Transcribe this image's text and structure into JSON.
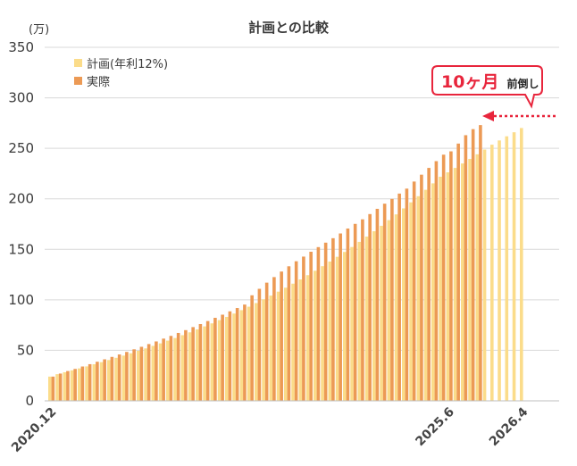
{
  "chart_data": {
    "type": "bar",
    "title": "計画との比較",
    "unit_label": "(万)",
    "ylim": [
      0,
      350
    ],
    "yticks": [
      0,
      50,
      100,
      150,
      200,
      250,
      300,
      350
    ],
    "grid": true,
    "legend_position": "top-left",
    "x_start": "2020.12",
    "x_end": "2026.4",
    "x_labels": [
      {
        "text": "2020.12",
        "index": 0,
        "color": "#444444"
      },
      {
        "text": "2025.6",
        "index": 54,
        "color": "#e8253c"
      },
      {
        "text": "2026.4",
        "index": 64,
        "color": "#444444"
      }
    ],
    "series": [
      {
        "name": "計画(年利12%)",
        "color": "#fbdc8a",
        "values": [
          24.0,
          26.4,
          28.3,
          30.2,
          32.1,
          34.1,
          36.2,
          38.3,
          40.4,
          42.6,
          44.8,
          47.1,
          49.5,
          51.9,
          54.4,
          56.9,
          59.6,
          62.2,
          65.0,
          67.8,
          70.7,
          73.7,
          76.7,
          79.9,
          83.1,
          86.4,
          89.8,
          93.2,
          96.8,
          100.5,
          104.2,
          108.1,
          112.0,
          116.0,
          120.2,
          124.4,
          128.8,
          133.3,
          137.9,
          142.6,
          147.4,
          152.3,
          157.4,
          162.6,
          167.9,
          173.3,
          178.9,
          184.6,
          190.5,
          196.5,
          202.6,
          208.9,
          215.3,
          221.9,
          226.2,
          230.6,
          235.0,
          239.5,
          244.1,
          248.8,
          253.6,
          257.8,
          261.9,
          265.9,
          270.1
        ]
      },
      {
        "name": "実際",
        "color": "#ec9a55",
        "values": [
          24.0,
          27.0,
          29.5,
          31.6,
          34.0,
          36.3,
          38.7,
          41.1,
          43.5,
          45.9,
          48.4,
          51.0,
          53.5,
          56.2,
          58.8,
          61.6,
          64.3,
          67.2,
          70.0,
          73.0,
          76.0,
          79.0,
          82.2,
          85.3,
          88.6,
          91.9,
          95.3,
          104.5,
          110.9,
          117.0,
          122.5,
          128.0,
          133.2,
          138.2,
          142.8,
          147.6,
          152.2,
          156.6,
          161.0,
          165.7,
          170.6,
          175.2,
          179.7,
          184.9,
          190.1,
          195.2,
          199.9,
          205.2,
          210.1,
          217.1,
          223.9,
          230.6,
          237.3,
          243.7,
          247.0,
          254.7,
          263.0,
          269.0,
          273.0
        ]
      }
    ],
    "annotation": {
      "big_text": "10ヶ月",
      "small_text": "前倒し",
      "arrow": "left"
    }
  }
}
